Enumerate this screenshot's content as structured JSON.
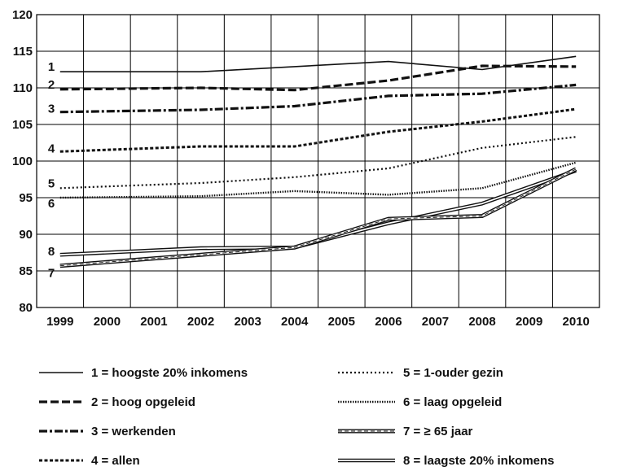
{
  "chart_data": {
    "type": "line",
    "title": "",
    "xlabel": "",
    "ylabel": "",
    "ylim": [
      80,
      120
    ],
    "yticks": [
      80,
      85,
      90,
      95,
      100,
      105,
      110,
      115,
      120
    ],
    "x": [
      1999,
      2000,
      2001,
      2002,
      2003,
      2004,
      2005,
      2006,
      2007,
      2008,
      2009,
      2010
    ],
    "x_tick_labels": [
      "1999",
      "2000",
      "2001",
      "2002",
      "2003",
      "2004",
      "2005",
      "2006",
      "2007",
      "2008",
      "2009",
      "2010"
    ],
    "grid": true,
    "legend_position": "bottom",
    "series": [
      {
        "label": "1",
        "name": "1 = hoogste 20% inkomens",
        "style": "solid",
        "x": [
          1999,
          2002,
          2006,
          2008,
          2010
        ],
        "values": [
          112.2,
          112.2,
          113.6,
          112.5,
          114.3
        ]
      },
      {
        "label": "2",
        "name": "2 = hoog opgeleid",
        "style": "long-dash",
        "x": [
          1999,
          2002,
          2004,
          2006,
          2008,
          2010
        ],
        "values": [
          109.8,
          110.0,
          109.7,
          111.0,
          113.0,
          112.9
        ]
      },
      {
        "label": "3",
        "name": "3 = werkenden",
        "style": "dash-dot",
        "x": [
          1999,
          2002,
          2004,
          2006,
          2008,
          2010
        ],
        "values": [
          106.7,
          107.0,
          107.5,
          108.9,
          109.2,
          110.4
        ]
      },
      {
        "label": "4",
        "name": "4 = allen",
        "style": "short-dash",
        "x": [
          1999,
          2002,
          2004,
          2006,
          2008,
          2010
        ],
        "values": [
          101.3,
          102.0,
          102.0,
          104.0,
          105.4,
          107.1
        ]
      },
      {
        "label": "5",
        "name": "5 = 1-ouder gezin",
        "style": "dotted",
        "x": [
          1999,
          2002,
          2004,
          2006,
          2008,
          2010
        ],
        "values": [
          96.3,
          97.0,
          97.8,
          99.0,
          101.8,
          103.3
        ]
      },
      {
        "label": "6",
        "name": "6 = laag opgeleid",
        "style": "dense-dotted",
        "x": [
          1999,
          2002,
          2004,
          2006,
          2008,
          2010
        ],
        "values": [
          95.0,
          95.2,
          95.9,
          95.4,
          96.3,
          99.8
        ]
      },
      {
        "label": "7",
        "name": "7 = ≥ 65 jaar",
        "style": "double-dashed",
        "x": [
          1999,
          2002,
          2004,
          2006,
          2008,
          2010
        ],
        "values": [
          85.7,
          87.2,
          88.2,
          92.1,
          92.5,
          98.9
        ]
      },
      {
        "label": "8",
        "name": "8 = laagste 20% inkomens",
        "style": "double",
        "x": [
          1999,
          2002,
          2004,
          2006,
          2008,
          2010
        ],
        "values": [
          87.2,
          88.1,
          88.2,
          91.5,
          94.2,
          98.7
        ]
      }
    ]
  }
}
